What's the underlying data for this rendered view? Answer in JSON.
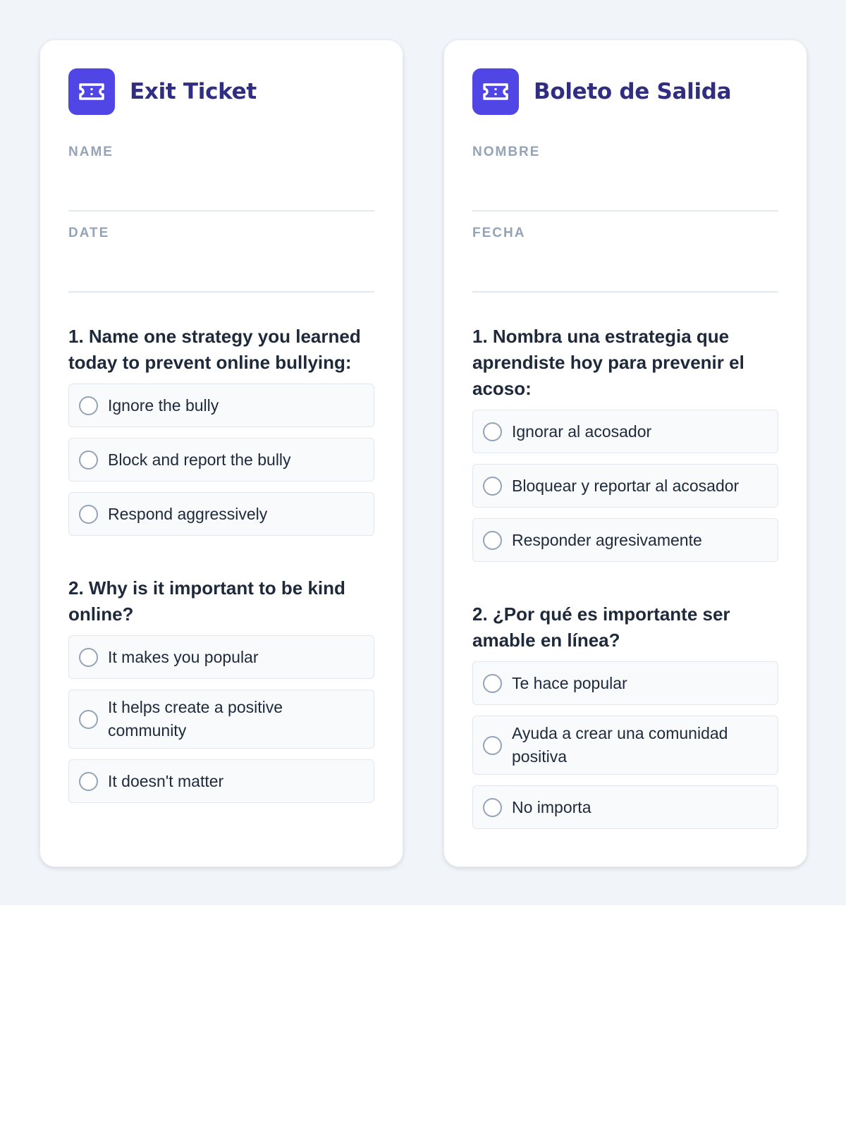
{
  "cards": [
    {
      "title": "Exit Ticket",
      "icon": "ticket-icon",
      "name_label": "NAME",
      "date_label": "DATE",
      "questions": [
        {
          "text": "1. Name one strategy you learned today to prevent online bullying:",
          "options": [
            "Ignore the bully",
            "Block and report the bully",
            "Respond aggressively"
          ]
        },
        {
          "text": "2. Why is it important to be kind online?",
          "options": [
            "It makes you popular",
            "It helps create a positive community",
            "It doesn't matter"
          ]
        }
      ]
    },
    {
      "title": "Boleto de Salida",
      "icon": "ticket-icon",
      "name_label": "NOMBRE",
      "date_label": "FECHA",
      "questions": [
        {
          "text": "1. Nombra una estrategia que aprendiste hoy para prevenir el acoso:",
          "options": [
            "Ignorar al acosador",
            "Bloquear y reportar al acosador",
            "Responder agresivamente"
          ]
        },
        {
          "text": "2. ¿Por qué es importante ser amable en línea?",
          "options": [
            "Te hace popular",
            "Ayuda a crear una comunidad positiva",
            "No importa"
          ]
        }
      ]
    }
  ],
  "colors": {
    "accent": "#4f46e5",
    "title": "#312e81",
    "background": "#f1f4f9"
  }
}
